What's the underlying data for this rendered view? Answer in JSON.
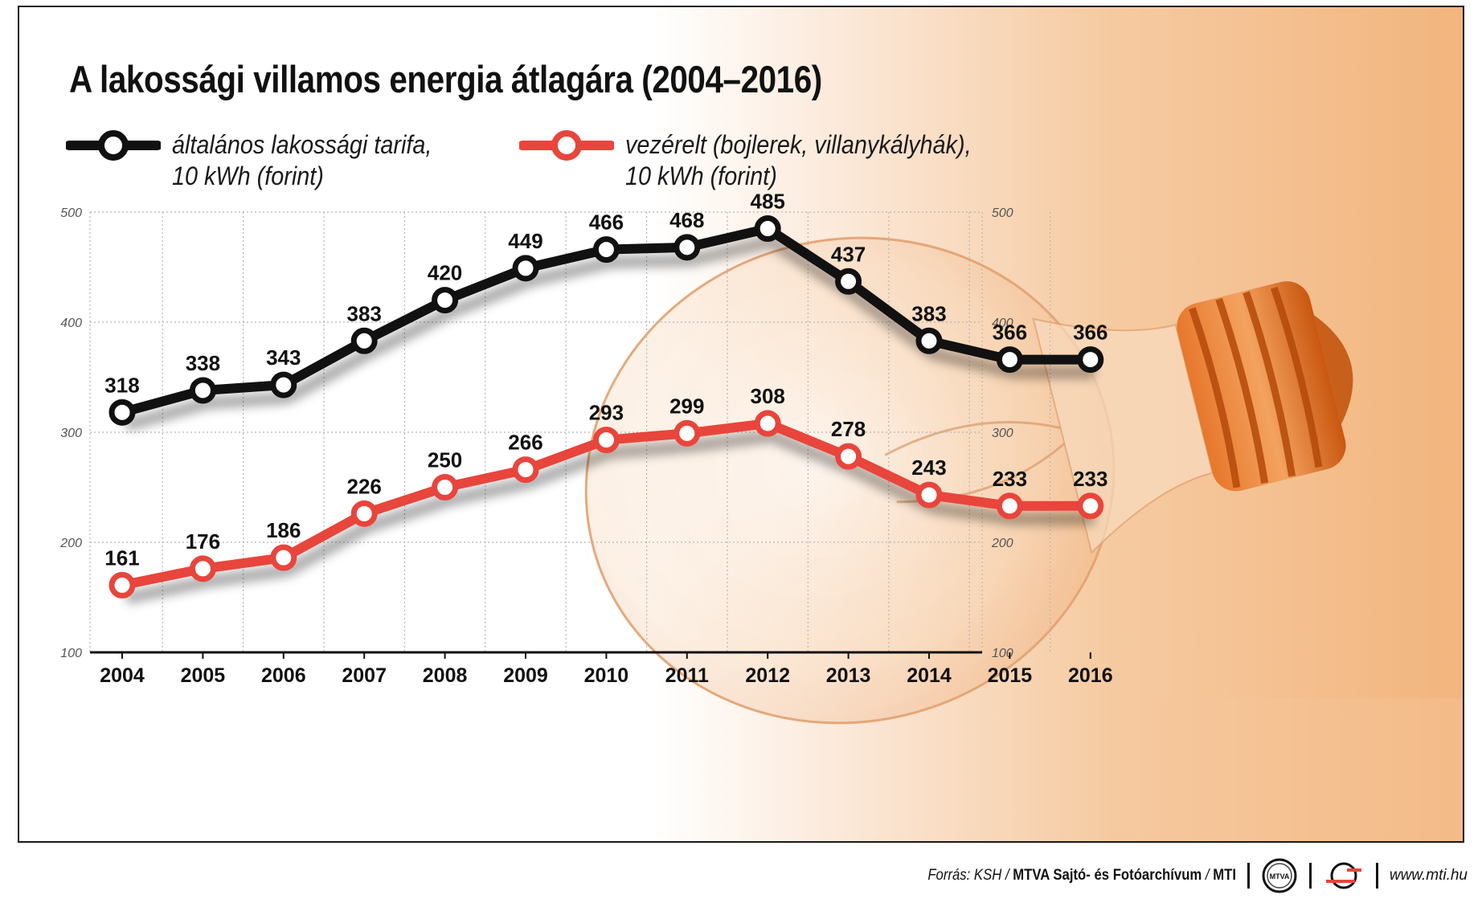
{
  "chart_data": {
    "type": "line",
    "title": "A lakossági villamos energia átlagára (2004–2016)",
    "categories": [
      "2004",
      "2005",
      "2006",
      "2007",
      "2008",
      "2009",
      "2010",
      "2011",
      "2012",
      "2013",
      "2014",
      "2015",
      "2016"
    ],
    "ylim": [
      100,
      500
    ],
    "yticks": [
      100,
      200,
      300,
      400,
      500
    ],
    "grid": true,
    "legend_position": "top-left",
    "series": [
      {
        "name": "általános lakossági tarifa, 10 kWh (forint)",
        "label_line1": "általános lakossági tarifa,",
        "label_line2": "10 kWh (forint)",
        "color": "#111111",
        "values": [
          318,
          338,
          343,
          383,
          420,
          449,
          466,
          468,
          485,
          437,
          383,
          366,
          366
        ]
      },
      {
        "name": "vezérelt (bojlerek, villanykályhák), 10 kWh (forint)",
        "label_line1": "vezérelt (bojlerek, villanykályhák),",
        "label_line2": "10 kWh (forint)",
        "color": "#e8453c",
        "values": [
          161,
          176,
          186,
          226,
          250,
          266,
          293,
          299,
          308,
          278,
          243,
          233,
          233
        ]
      }
    ]
  },
  "footer": {
    "source_prefix": "Forrás: KSH / ",
    "source_bold": "MTVA Sajtó- és Fotóarchívum",
    "source_sep": " / ",
    "source_mti": "MTI",
    "logo_text": "MTVA",
    "website": "www.mti.hu"
  }
}
